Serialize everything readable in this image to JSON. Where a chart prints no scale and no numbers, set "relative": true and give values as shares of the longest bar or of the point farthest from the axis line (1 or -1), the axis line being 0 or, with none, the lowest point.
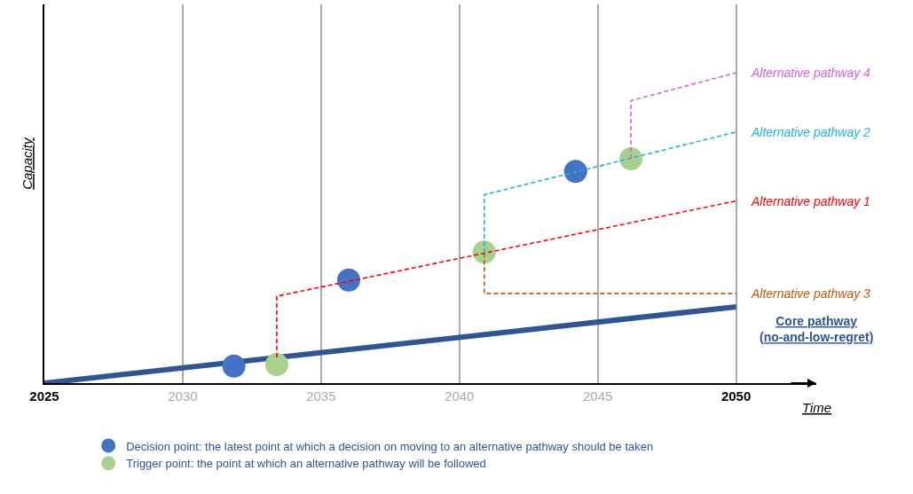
{
  "chart_data": {
    "type": "line",
    "relative": true,
    "xlabel": "Time",
    "ylabel": "Capacity",
    "xlim": [
      2025,
      2052.9
    ],
    "xticks": [
      2025,
      2030,
      2035,
      2040,
      2045,
      2050
    ],
    "grid": "x",
    "legend": "bottom",
    "line_style": "dashed",
    "series": [
      {
        "name": "Core pathway\n(no-and-low-regret)",
        "color": "#2f5597",
        "line_style": "solid",
        "x": [
          2025,
          2050
        ],
        "values": [
          0,
          0.246
        ]
      },
      {
        "name": "Alternative pathway 1",
        "color": "#ff0000",
        "x": [
          2033.4,
          2033.4,
          2050
        ],
        "values": [
          0.083,
          0.28,
          0.587
        ]
      },
      {
        "name": "Alternative pathway 3",
        "color": "#c55a11",
        "x": [
          2040.9,
          2040.9,
          2050
        ],
        "values": [
          0.419,
          0.289,
          0.289
        ]
      },
      {
        "name": "Alternative pathway 2",
        "color": "#1fb0e8",
        "x": [
          2040.9,
          2040.9,
          2050
        ],
        "values": [
          0.419,
          0.607,
          0.809
        ]
      },
      {
        "name": "Alternative pathway 4",
        "color": "#da5fe0",
        "x": [
          2046.2,
          2046.2,
          2050
        ],
        "values": [
          0.723,
          0.91,
          1.0
        ]
      },
      {
        "name": "Decision point: the latest point at which a decision on moving to an alternative pathway should be taken",
        "type": "scatter",
        "marker": "circle",
        "color": "#4472c4",
        "x": [
          2031.85,
          2036.0,
          2044.2
        ],
        "values": [
          0.055,
          0.332,
          0.682
        ]
      },
      {
        "name": "Trigger point: the point at which an alternative pathway will be followed",
        "type": "scatter",
        "marker": "circle",
        "color": "#a9d18e",
        "x": [
          2033.4,
          2040.9,
          2046.2
        ],
        "values": [
          0.06,
          0.422,
          0.723
        ]
      }
    ]
  }
}
